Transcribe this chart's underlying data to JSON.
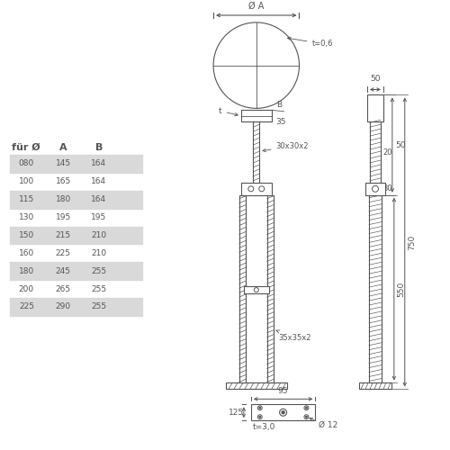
{
  "bg_color": "#ffffff",
  "table_header": [
    "für Ø",
    "A",
    "B"
  ],
  "table_rows": [
    [
      "080",
      "145",
      "164"
    ],
    [
      "100",
      "165",
      "164"
    ],
    [
      "115",
      "180",
      "164"
    ],
    [
      "130",
      "195",
      "195"
    ],
    [
      "150",
      "215",
      "210"
    ],
    [
      "160",
      "225",
      "210"
    ],
    [
      "180",
      "245",
      "255"
    ],
    [
      "200",
      "265",
      "255"
    ],
    [
      "225",
      "290",
      "255"
    ]
  ],
  "shaded_rows": [
    0,
    2,
    4,
    6,
    8
  ],
  "shade_color": "#d9d9d9",
  "line_color": "#555555",
  "font_size": 6.5,
  "header_font_size": 8.0
}
